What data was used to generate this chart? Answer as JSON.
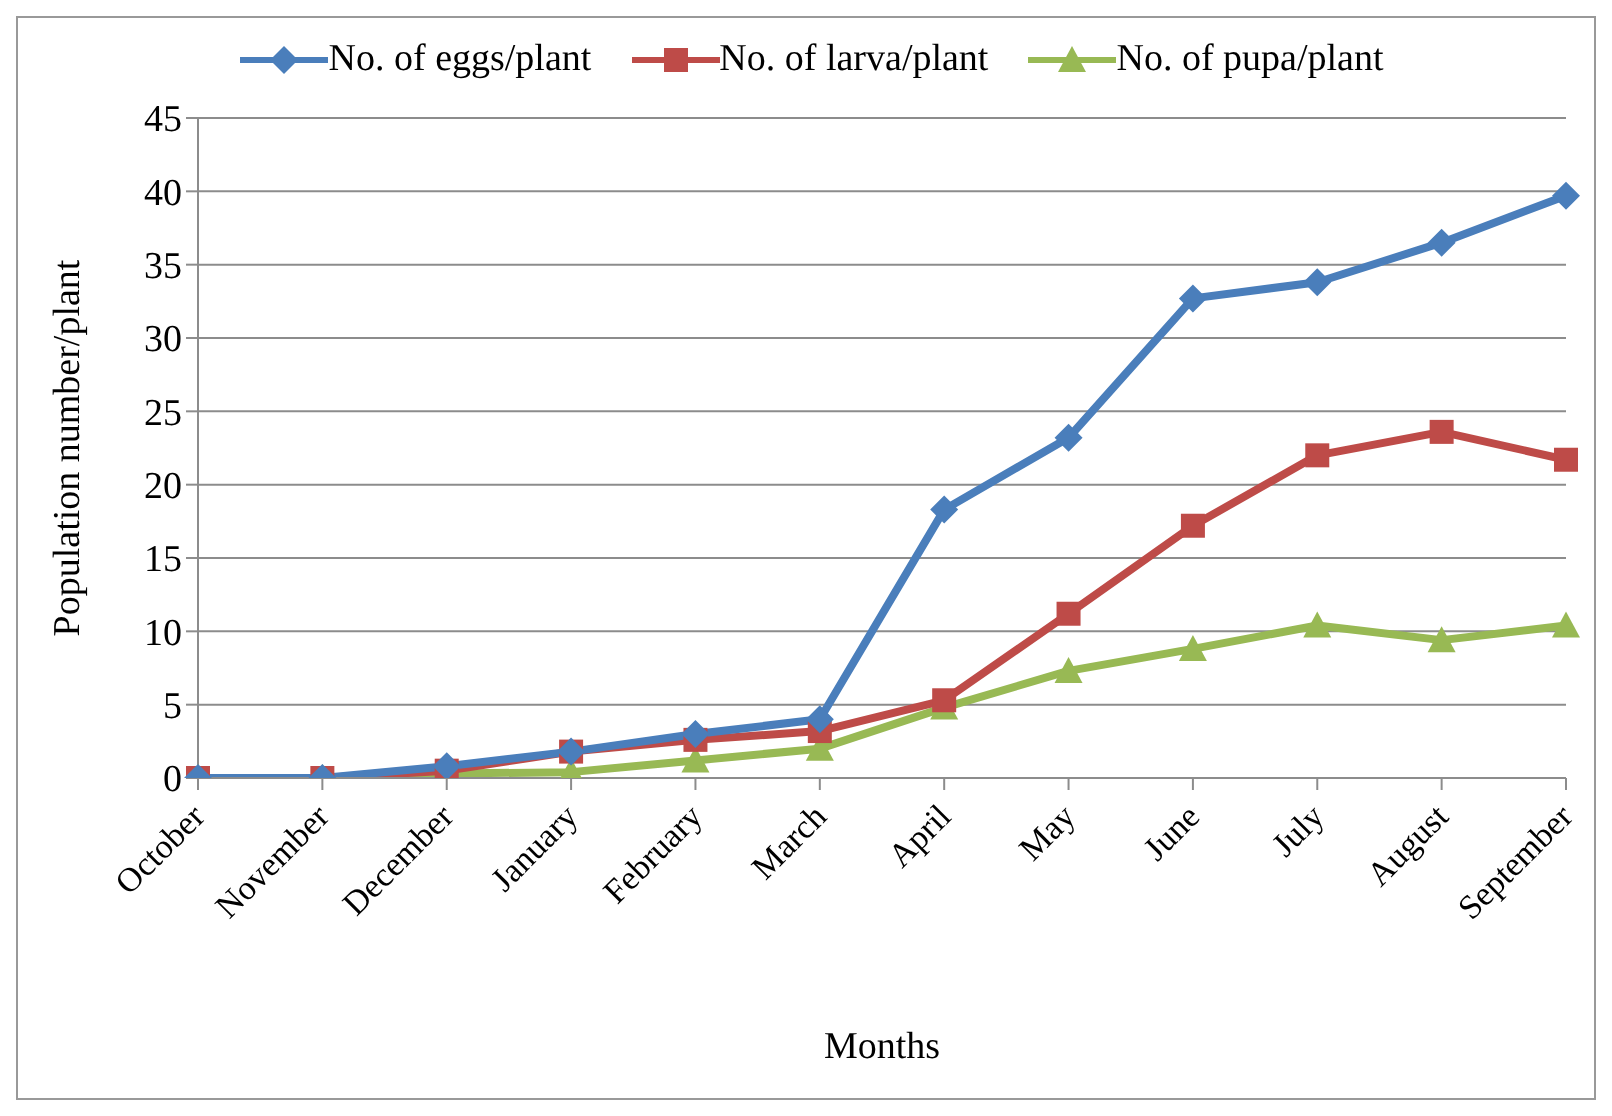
{
  "chart_data": {
    "type": "line",
    "xlabel": "Months",
    "ylabel": "Population number/plant",
    "categories": [
      "October",
      "November",
      "December",
      "January",
      "February",
      "March",
      "April",
      "May",
      "June",
      "July",
      "August",
      "September"
    ],
    "series": [
      {
        "name": "No. of eggs/plant",
        "color": "#4a7ebb",
        "marker": "diamond",
        "values": [
          0,
          0,
          0.8,
          1.8,
          3,
          4,
          18.3,
          23.2,
          32.7,
          33.8,
          36.5,
          39.7
        ]
      },
      {
        "name": "No. of larva/plant",
        "color": "#be4b48",
        "marker": "square",
        "values": [
          0,
          0,
          0.5,
          1.8,
          2.6,
          3.2,
          5.3,
          11.2,
          17.2,
          22,
          23.6,
          21.7
        ]
      },
      {
        "name": "No. of pupa/plant",
        "color": "#98b954",
        "marker": "triangle",
        "values": [
          0,
          0,
          0.3,
          0.4,
          1.2,
          2,
          4.8,
          7.3,
          8.8,
          10.4,
          9.4,
          10.4
        ]
      }
    ],
    "ylim": [
      0,
      45
    ],
    "yticks": [
      0,
      5,
      10,
      15,
      20,
      25,
      30,
      35,
      40,
      45
    ],
    "grid": "y",
    "legend": "top",
    "line_style": "solid"
  }
}
